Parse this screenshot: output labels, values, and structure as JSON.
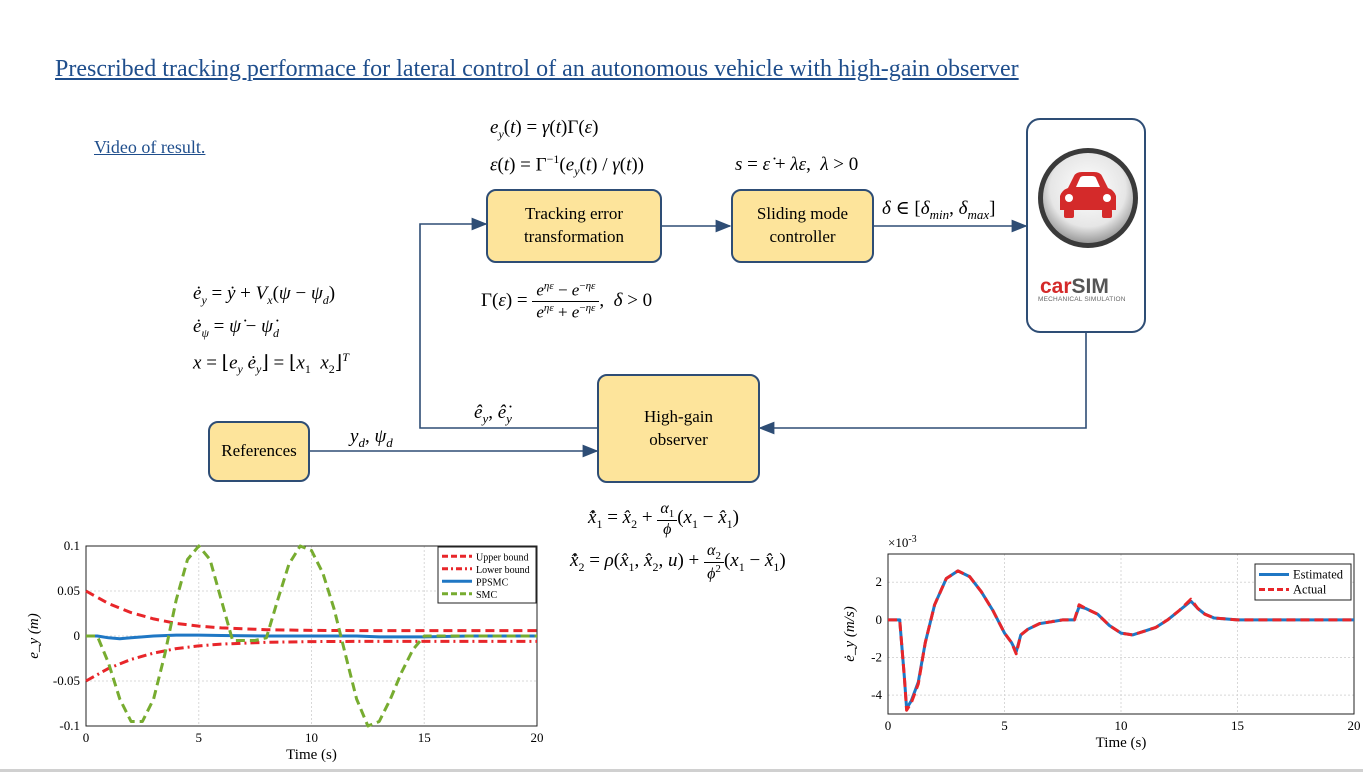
{
  "title": "Prescribed tracking performace for lateral control of an autonomous vehicle with high-gain observer",
  "link": "Video of result.",
  "blocks": {
    "tracking": "Tracking error transformation",
    "smc": "Sliding mode controller",
    "observer": "High-gain observer",
    "references": "References"
  },
  "carsim": {
    "brand": "carSIM",
    "brand_main": "car",
    "brand_accent": "SIM",
    "tagline": "MECHANICAL SIMULATION"
  },
  "labels": {
    "delta_range": "δ ∈ [δmin, δmax]",
    "ref_signal": "yd, ψd",
    "obs_signal": "ê_y, ê̇_y"
  },
  "equations": {
    "ey": "e_y(t) = γ(t)Γ(ε)",
    "eps": "ε(t) = Γ^-1(e_y(t)/γ(t))",
    "s": "s = ε̇ + λε, λ > 0",
    "gamma": "Γ(ε) = (e^ηε − e^−ηε)/(e^ηε + e^−ηε), δ > 0",
    "dyn1": "ė_y = ẏ + V_x(ψ − ψ_d)",
    "dyn2": "ė_ψ = ψ̇ − ψ̇_d",
    "dyn3": "x = [e_y ė_y] = [x1 x2]^T",
    "obs1": "x̂̇1 = x̂2 + (α1/φ)(x1 − x̂1)",
    "obs2": "x̂̇2 = ρ(x̂1, x̂2, u) + (α2/φ²)(x1 − x̂1)"
  },
  "chart_data": [
    {
      "type": "line",
      "xlabel": "Time (s)",
      "ylabel": "e_y (m)",
      "xlim": [
        0,
        20
      ],
      "ylim": [
        -0.1,
        0.1
      ],
      "xticks": [
        "0",
        "5",
        "10",
        "15",
        "20"
      ],
      "yticks": [
        "0.1",
        "0.05",
        "0",
        "-0.05",
        "-0.1"
      ],
      "grid": true,
      "legend": "top-right",
      "series": [
        {
          "name": "Upper bound",
          "color": "#e8262a",
          "dash": "dashed",
          "x": [
            0,
            1,
            2,
            3,
            4,
            5,
            6,
            7,
            8,
            10,
            12,
            15,
            20
          ],
          "y": [
            0.05,
            0.036,
            0.026,
            0.019,
            0.014,
            0.011,
            0.009,
            0.008,
            0.007,
            0.0062,
            0.006,
            0.006,
            0.006
          ]
        },
        {
          "name": "Lower bound",
          "color": "#e8262a",
          "dash": "dashdot",
          "x": [
            0,
            1,
            2,
            3,
            4,
            5,
            6,
            7,
            8,
            10,
            12,
            15,
            20
          ],
          "y": [
            -0.05,
            -0.036,
            -0.026,
            -0.019,
            -0.014,
            -0.011,
            -0.009,
            -0.008,
            -0.007,
            -0.0062,
            -0.006,
            -0.006,
            -0.006
          ]
        },
        {
          "name": "PPSMC",
          "color": "#1f77c4",
          "dash": "solid",
          "x": [
            0,
            0.5,
            1,
            1.5,
            2,
            3,
            4,
            5,
            6,
            8,
            10,
            12,
            13,
            15,
            17,
            20
          ],
          "y": [
            0,
            0,
            -0.002,
            -0.003,
            -0.002,
            0,
            0.001,
            0.001,
            0.0005,
            0,
            0,
            0,
            -0.001,
            -0.001,
            0,
            0
          ]
        },
        {
          "name": "SMC",
          "color": "#77ac30",
          "dash": "dashed",
          "x": [
            0,
            0.5,
            1,
            1.5,
            2,
            2.5,
            3,
            3.5,
            4,
            4.5,
            5,
            5.5,
            6,
            6.5,
            7,
            7.5,
            8,
            8.5,
            9,
            9.5,
            10,
            10.5,
            11,
            11.5,
            12,
            12.5,
            13,
            13.5,
            14,
            14.5,
            15,
            16,
            17,
            20
          ],
          "y": [
            0,
            0,
            -0.03,
            -0.07,
            -0.095,
            -0.095,
            -0.07,
            -0.02,
            0.04,
            0.085,
            0.1,
            0.085,
            0.04,
            -0.005,
            -0.005,
            -0.005,
            -0.002,
            0.04,
            0.08,
            0.1,
            0.095,
            0.07,
            0.03,
            -0.02,
            -0.07,
            -0.1,
            -0.095,
            -0.07,
            -0.04,
            -0.015,
            0,
            0,
            0,
            0
          ]
        }
      ]
    },
    {
      "type": "line",
      "xlabel": "Time (s)",
      "ylabel": "ė_y (m/s)",
      "scale_label": "×10^-3",
      "scale_base": "×10",
      "scale_exp": "-3",
      "xlim": [
        0,
        20
      ],
      "ylim": [
        -5,
        3.5
      ],
      "xticks": [
        "0",
        "5",
        "10",
        "15",
        "20"
      ],
      "yticks": [
        "2",
        "0",
        "-2",
        "-4"
      ],
      "grid": true,
      "legend": "top-right",
      "series": [
        {
          "name": "Estimated",
          "color": "#1f77c4",
          "dash": "solid",
          "x": [
            0,
            0.5,
            0.7,
            0.8,
            1,
            1.3,
            1.6,
            2,
            2.5,
            3,
            3.5,
            4,
            4.5,
            5,
            5.3,
            5.5,
            5.7,
            6,
            6.5,
            7,
            7.5,
            8,
            8.2,
            8.5,
            9,
            9.5,
            10,
            10.5,
            11,
            11.5,
            12,
            12.5,
            13,
            13.3,
            13.6,
            14,
            15,
            16,
            18,
            20
          ],
          "y": [
            0,
            0,
            -3,
            -4.7,
            -4.3,
            -3.3,
            -1.2,
            0.8,
            2.2,
            2.6,
            2.3,
            1.5,
            0.5,
            -0.7,
            -1.2,
            -1.7,
            -0.8,
            -0.5,
            -0.2,
            -0.1,
            0,
            0,
            0.7,
            0.6,
            0.3,
            -0.3,
            -0.7,
            -0.8,
            -0.6,
            -0.4,
            0,
            0.5,
            1.0,
            0.6,
            0.3,
            0.1,
            0,
            0,
            0,
            0
          ]
        },
        {
          "name": "Actual",
          "color": "#e8262a",
          "dash": "dashed",
          "x": [
            0,
            0.5,
            0.7,
            0.8,
            1,
            1.3,
            1.6,
            2,
            2.5,
            3,
            3.5,
            4,
            4.5,
            5,
            5.3,
            5.5,
            5.7,
            6,
            6.5,
            7,
            7.5,
            8,
            8.2,
            8.5,
            9,
            9.5,
            10,
            10.5,
            11,
            11.5,
            12,
            12.5,
            13,
            13.3,
            13.6,
            14,
            15,
            16,
            18,
            20
          ],
          "y": [
            0,
            0,
            -3,
            -4.8,
            -4.4,
            -3.4,
            -1.2,
            0.8,
            2.2,
            2.6,
            2.3,
            1.5,
            0.5,
            -0.7,
            -1.2,
            -1.8,
            -0.8,
            -0.5,
            -0.2,
            -0.1,
            0,
            0,
            0.8,
            0.6,
            0.3,
            -0.3,
            -0.7,
            -0.8,
            -0.6,
            -0.4,
            0,
            0.5,
            1.1,
            0.6,
            0.3,
            0.1,
            0,
            0,
            0,
            0
          ]
        }
      ]
    }
  ]
}
